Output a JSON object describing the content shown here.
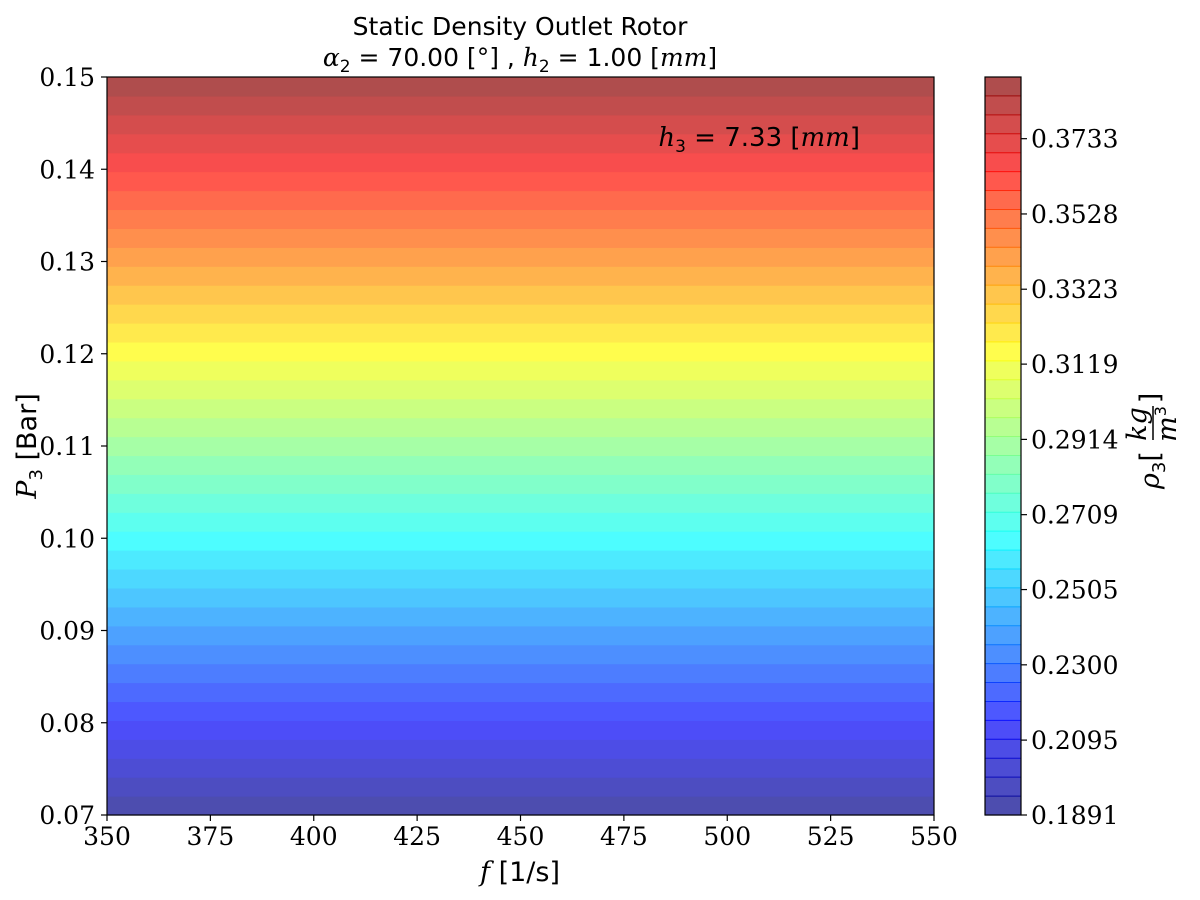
{
  "chart_data": {
    "type": "heatmap",
    "title": "Static Density Outlet Rotor",
    "subtitle": {
      "alpha_sym": "α",
      "alpha_sub": "2",
      "alpha_val": " = 70.00 [°] , ",
      "h_sym": "h",
      "h_sub": "2",
      "h_eq": " = 1.00 [",
      "h_unit": "mm",
      "h_close": "]"
    },
    "annotation": {
      "sym": "h",
      "sub": "3",
      "eq": " = 7.33 [",
      "unit": "mm",
      "close": "]"
    },
    "xlabel": {
      "sym": "f",
      "text": " [1/s]"
    },
    "ylabel": {
      "sym": "P",
      "sub": "3",
      "text": " [Bar]"
    },
    "colorbar_label": {
      "sym": "ρ",
      "sub": "3",
      "open": "[",
      "num": "kg",
      "den": "m",
      "den_exp": "3",
      "close": "]"
    },
    "xlim": [
      350,
      550
    ],
    "ylim": [
      0.07,
      0.15
    ],
    "x_ticks": [
      "350",
      "375",
      "400",
      "425",
      "450",
      "475",
      "500",
      "525",
      "550"
    ],
    "y_ticks": [
      "0.07",
      "0.08",
      "0.09",
      "0.10",
      "0.11",
      "0.12",
      "0.13",
      "0.14",
      "0.15"
    ],
    "colorbar_range": [
      0.1891,
      0.3901
    ],
    "colorbar_ticks": [
      "0.1891",
      "0.2095",
      "0.2300",
      "0.2505",
      "0.2709",
      "0.2914",
      "0.3119",
      "0.3323",
      "0.3528",
      "0.3733"
    ],
    "contour_levels": 39,
    "colormap": "jet",
    "alpha": 0.7,
    "grid": false,
    "density_varies_with": "P3 (horizontal bands, constant along f)"
  }
}
